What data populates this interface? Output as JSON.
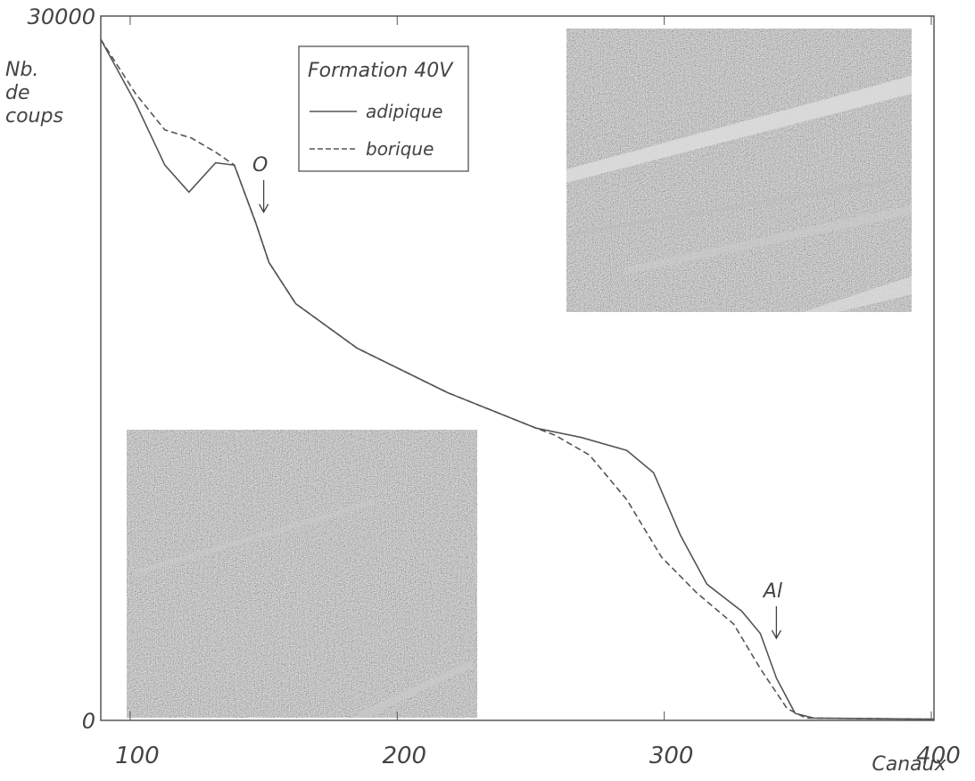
{
  "chart_data": {
    "type": "line",
    "ylabel": "Nb. de coups",
    "xlabel": "Canaux",
    "legend_title": "Formation 40V",
    "xlim": [
      89,
      401
    ],
    "xticks": [
      100,
      200,
      300,
      400
    ],
    "ylim": [
      0,
      30000
    ],
    "yticks": [
      0,
      30000
    ],
    "series": [
      {
        "name": "adipique",
        "color": "#555555",
        "dash": false,
        "x": [
          89,
          102,
          113,
          122,
          132,
          139,
          147,
          152,
          162,
          185,
          219,
          252,
          269,
          286,
          296,
          306,
          316,
          329,
          336,
          342,
          349,
          356,
          401
        ],
        "values": [
          29000,
          26300,
          23650,
          22500,
          23750,
          23650,
          21200,
          19500,
          17750,
          15850,
          13950,
          12450,
          12050,
          11500,
          10550,
          7900,
          5800,
          4650,
          3700,
          1800,
          300,
          100,
          50
        ]
      },
      {
        "name": "borique",
        "color": "#555555",
        "dash": true,
        "x": [
          89,
          102,
          113,
          123,
          132,
          139,
          147,
          152,
          162,
          185,
          219,
          252,
          259,
          272,
          286,
          299,
          312,
          326,
          336,
          346,
          353,
          401
        ],
        "values": [
          29000,
          26700,
          25150,
          24800,
          24200,
          23650,
          21200,
          19500,
          17750,
          15850,
          13950,
          12450,
          12150,
          11300,
          9400,
          6950,
          5450,
          4100,
          2200,
          500,
          100,
          50
        ]
      }
    ],
    "annotations": [
      {
        "text": "O",
        "x": 150
      },
      {
        "text": "Al",
        "x": 342
      }
    ]
  }
}
